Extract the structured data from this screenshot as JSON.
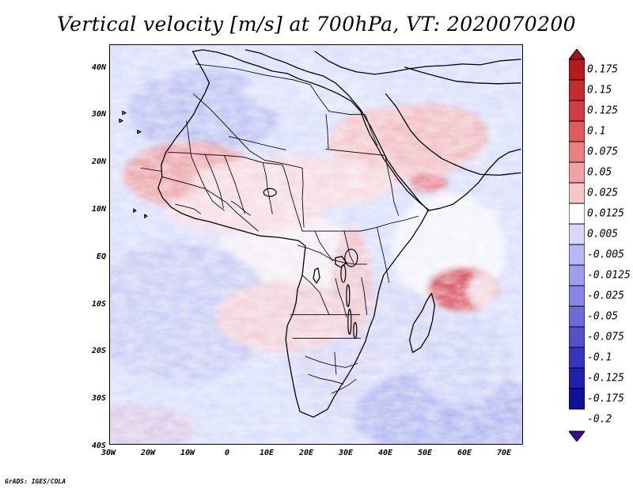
{
  "title": "Vertical velocity [m/s] at 700hPa, VT: 2020070200",
  "map": {
    "variable": "Vertical velocity",
    "units": "m/s",
    "level": "700hPa",
    "valid_time": "2020070200",
    "lat_range": [
      -40,
      45
    ],
    "lon_range": [
      -30,
      75
    ],
    "lat_ticks": [
      "40N",
      "30N",
      "20N",
      "10N",
      "EQ",
      "10S",
      "20S",
      "30S",
      "40S"
    ],
    "lon_ticks": [
      "30W",
      "20W",
      "10W",
      "0",
      "10E",
      "20E",
      "30E",
      "40E",
      "50E",
      "60E",
      "70E"
    ]
  },
  "legend": {
    "labels": [
      "0.175",
      "0.15",
      "0.125",
      "0.1",
      "0.075",
      "0.05",
      "0.025",
      "0.0125",
      "0.005",
      "-0.005",
      "-0.0125",
      "-0.025",
      "-0.05",
      "-0.075",
      "-0.1",
      "-0.125",
      "-0.175",
      "-0.2"
    ],
    "colors": [
      "#a31416",
      "#b7191f",
      "#c32b2f",
      "#d13e42",
      "#df5c5d",
      "#e97f7f",
      "#f2a2a2",
      "#f8c8c8",
      "#ffffff",
      "#d8d8fd",
      "#b7b7f5",
      "#9e9eee",
      "#8686e6",
      "#6b6bd9",
      "#5151cc",
      "#3636bd",
      "#2020ad",
      "#11119c",
      "#3b0a9a"
    ]
  },
  "credit": "GrADS: IGES/COLA"
}
